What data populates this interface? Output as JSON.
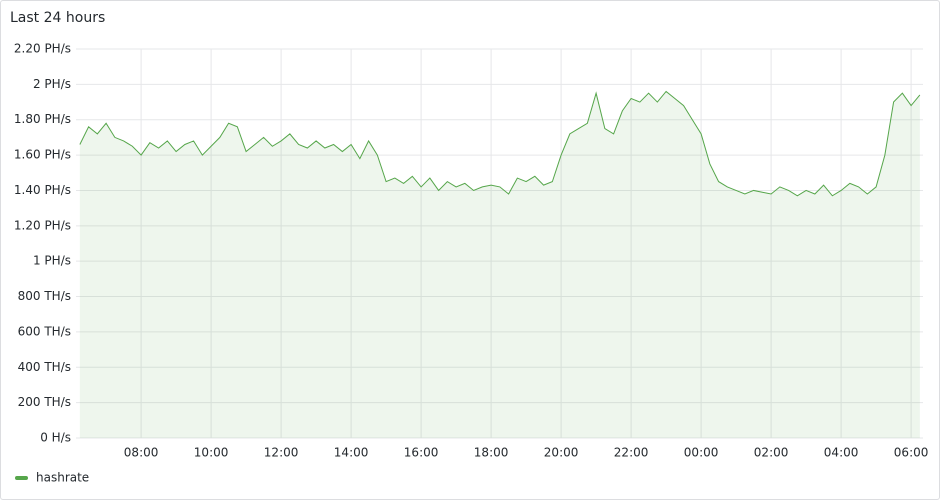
{
  "chart_data": {
    "type": "area",
    "title": "Last 24 hours",
    "x": [
      6.25,
      6.5,
      6.75,
      7,
      7.25,
      7.5,
      7.75,
      8,
      8.25,
      8.5,
      8.75,
      9,
      9.25,
      9.5,
      9.75,
      10,
      10.25,
      10.5,
      10.75,
      11,
      11.25,
      11.5,
      11.75,
      12,
      12.25,
      12.5,
      12.75,
      13,
      13.25,
      13.5,
      13.75,
      14,
      14.25,
      14.5,
      14.75,
      15,
      15.25,
      15.5,
      15.75,
      16,
      16.25,
      16.5,
      16.75,
      17,
      17.25,
      17.5,
      17.75,
      18,
      18.25,
      18.5,
      18.75,
      19,
      19.25,
      19.5,
      19.75,
      20,
      20.25,
      20.5,
      20.75,
      21,
      21.25,
      21.5,
      21.75,
      22,
      22.25,
      22.5,
      22.75,
      23,
      23.25,
      23.5,
      23.75,
      24,
      24.25,
      24.5,
      24.75,
      25,
      25.25,
      25.5,
      25.75,
      26,
      26.25,
      26.5,
      26.75,
      27,
      27.25,
      27.5,
      27.75,
      28,
      28.25,
      28.5,
      28.75,
      29,
      29.25,
      29.5,
      29.75,
      30,
      30.25
    ],
    "series": [
      {
        "name": "hashrate",
        "color": "#56a64b",
        "values": [
          1.66,
          1.76,
          1.72,
          1.78,
          1.7,
          1.68,
          1.65,
          1.6,
          1.67,
          1.64,
          1.68,
          1.62,
          1.66,
          1.68,
          1.6,
          1.65,
          1.7,
          1.78,
          1.76,
          1.62,
          1.66,
          1.7,
          1.65,
          1.68,
          1.72,
          1.66,
          1.64,
          1.68,
          1.64,
          1.66,
          1.62,
          1.66,
          1.58,
          1.68,
          1.6,
          1.45,
          1.47,
          1.44,
          1.48,
          1.42,
          1.47,
          1.4,
          1.45,
          1.42,
          1.44,
          1.4,
          1.42,
          1.43,
          1.42,
          1.38,
          1.47,
          1.45,
          1.48,
          1.43,
          1.45,
          1.6,
          1.72,
          1.75,
          1.78,
          1.95,
          1.75,
          1.72,
          1.85,
          1.92,
          1.9,
          1.95,
          1.9,
          1.96,
          1.92,
          1.88,
          1.8,
          1.72,
          1.55,
          1.45,
          1.42,
          1.4,
          1.38,
          1.4,
          1.39,
          1.38,
          1.42,
          1.4,
          1.37,
          1.4,
          1.38,
          1.43,
          1.37,
          1.4,
          1.44,
          1.42,
          1.38,
          1.42,
          1.6,
          1.9,
          1.95,
          1.88,
          1.94
        ]
      }
    ],
    "xlim": [
      6.14,
      30.34
    ],
    "xticks": [
      {
        "value": 8,
        "label": "08:00"
      },
      {
        "value": 10,
        "label": "10:00"
      },
      {
        "value": 12,
        "label": "12:00"
      },
      {
        "value": 14,
        "label": "14:00"
      },
      {
        "value": 16,
        "label": "16:00"
      },
      {
        "value": 18,
        "label": "18:00"
      },
      {
        "value": 20,
        "label": "20:00"
      },
      {
        "value": 22,
        "label": "22:00"
      },
      {
        "value": 24,
        "label": "00:00"
      },
      {
        "value": 26,
        "label": "02:00"
      },
      {
        "value": 28,
        "label": "04:00"
      },
      {
        "value": 30,
        "label": "06:00"
      }
    ],
    "ylim": [
      0,
      2.2
    ],
    "yticks": [
      {
        "value": 0,
        "label": "0 H/s"
      },
      {
        "value": 0.2,
        "label": "200 TH/s"
      },
      {
        "value": 0.4,
        "label": "400 TH/s"
      },
      {
        "value": 0.6,
        "label": "600 TH/s"
      },
      {
        "value": 0.8,
        "label": "800 TH/s"
      },
      {
        "value": 1,
        "label": "1 PH/s"
      },
      {
        "value": 1.2,
        "label": "1.20 PH/s"
      },
      {
        "value": 1.4,
        "label": "1.40 PH/s"
      },
      {
        "value": 1.6,
        "label": "1.60 PH/s"
      },
      {
        "value": 1.8,
        "label": "1.80 PH/s"
      },
      {
        "value": 2,
        "label": "2 PH/s"
      },
      {
        "value": 2.2,
        "label": "2.20 PH/s"
      }
    ],
    "grid": true
  }
}
